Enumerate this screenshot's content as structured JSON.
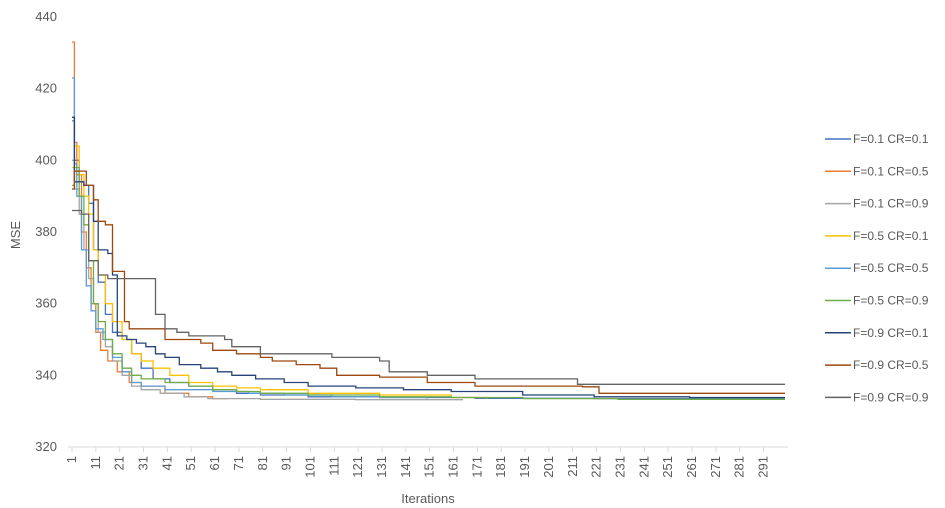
{
  "chart_data": {
    "type": "line",
    "title": "",
    "xlabel": "Iterations",
    "ylabel": "MSE",
    "xlim": [
      1,
      300
    ],
    "ylim": [
      320,
      440
    ],
    "y_ticks": [
      "320",
      "340",
      "360",
      "380",
      "400",
      "420",
      "440"
    ],
    "x_ticks": [
      "1",
      "11",
      "21",
      "31",
      "41",
      "51",
      "61",
      "71",
      "81",
      "91",
      "101",
      "111",
      "121",
      "131",
      "141",
      "151",
      "161",
      "171",
      "181",
      "191",
      "201",
      "211",
      "221",
      "231",
      "241",
      "251",
      "261",
      "271",
      "281",
      "291"
    ],
    "grid": false,
    "legend_position": "right",
    "series": [
      {
        "name": "F=0.1 CR=0.1",
        "color": "#4472C4",
        "points": [
          [
            1,
            411
          ],
          [
            2,
            400
          ],
          [
            4,
            394
          ],
          [
            6,
            393
          ],
          [
            8,
            388
          ],
          [
            10,
            375
          ],
          [
            12,
            366
          ],
          [
            15,
            357
          ],
          [
            18,
            352
          ],
          [
            22,
            350
          ],
          [
            26,
            346
          ],
          [
            30,
            342
          ],
          [
            35,
            339
          ],
          [
            42,
            338
          ],
          [
            50,
            337
          ],
          [
            60,
            336
          ],
          [
            70,
            335
          ],
          [
            80,
            334.5
          ],
          [
            100,
            334
          ],
          [
            130,
            333.8
          ],
          [
            170,
            333.6
          ],
          [
            220,
            333.5
          ],
          [
            300,
            333.5
          ]
        ]
      },
      {
        "name": "F=0.1 CR=0.5",
        "color": "#ED7D31",
        "points": [
          [
            1,
            433
          ],
          [
            2,
            405
          ],
          [
            3,
            396
          ],
          [
            5,
            380
          ],
          [
            7,
            370
          ],
          [
            9,
            360
          ],
          [
            11,
            352
          ],
          [
            13,
            347
          ],
          [
            16,
            344
          ],
          [
            20,
            341
          ],
          [
            25,
            338
          ],
          [
            30,
            337
          ],
          [
            40,
            335
          ],
          [
            50,
            334
          ],
          [
            60,
            333.5
          ],
          [
            66,
            333.3
          ]
        ]
      },
      {
        "name": "F=0.1 CR=0.9",
        "color": "#A5A5A5",
        "points": [
          [
            1,
            400
          ],
          [
            2,
            392
          ],
          [
            4,
            385
          ],
          [
            6,
            375
          ],
          [
            8,
            367
          ],
          [
            10,
            360
          ],
          [
            12,
            352
          ],
          [
            15,
            348
          ],
          [
            18,
            344
          ],
          [
            22,
            340
          ],
          [
            26,
            337
          ],
          [
            30,
            336
          ],
          [
            38,
            335
          ],
          [
            48,
            334
          ],
          [
            58,
            333.5
          ],
          [
            80,
            333.3
          ],
          [
            120,
            333.2
          ],
          [
            165,
            333.2
          ]
        ]
      },
      {
        "name": "F=0.5 CR=0.1",
        "color": "#FFC000",
        "points": [
          [
            1,
            398
          ],
          [
            2,
            404
          ],
          [
            4,
            396
          ],
          [
            6,
            390
          ],
          [
            8,
            385
          ],
          [
            10,
            375
          ],
          [
            12,
            368
          ],
          [
            15,
            360
          ],
          [
            18,
            355
          ],
          [
            22,
            350
          ],
          [
            26,
            346
          ],
          [
            30,
            344
          ],
          [
            35,
            342
          ],
          [
            42,
            340
          ],
          [
            50,
            338
          ],
          [
            60,
            337
          ],
          [
            70,
            336.5
          ],
          [
            80,
            336
          ],
          [
            100,
            335
          ],
          [
            130,
            334.5
          ],
          [
            160,
            333.8
          ],
          [
            175,
            333.5
          ]
        ]
      },
      {
        "name": "F=0.5 CR=0.5",
        "color": "#5B9BD5",
        "points": [
          [
            1,
            423
          ],
          [
            2,
            399
          ],
          [
            3,
            390
          ],
          [
            5,
            375
          ],
          [
            7,
            365
          ],
          [
            9,
            358
          ],
          [
            11,
            353
          ],
          [
            14,
            350
          ],
          [
            18,
            345
          ],
          [
            22,
            341
          ],
          [
            26,
            338
          ],
          [
            30,
            337
          ],
          [
            40,
            336
          ],
          [
            50,
            336
          ],
          [
            60,
            335.5
          ],
          [
            75,
            335
          ],
          [
            90,
            334.5
          ],
          [
            110,
            334
          ],
          [
            130,
            333.8
          ],
          [
            150,
            333.5
          ]
        ]
      },
      {
        "name": "F=0.5 CR=0.9",
        "color": "#70AD47",
        "points": [
          [
            1,
            393
          ],
          [
            2,
            398
          ],
          [
            4,
            390
          ],
          [
            6,
            382
          ],
          [
            8,
            372
          ],
          [
            10,
            360
          ],
          [
            12,
            355
          ],
          [
            15,
            350
          ],
          [
            18,
            346
          ],
          [
            22,
            342
          ],
          [
            26,
            340
          ],
          [
            30,
            339
          ],
          [
            40,
            338
          ],
          [
            50,
            337
          ],
          [
            60,
            336
          ],
          [
            70,
            335.5
          ],
          [
            80,
            335
          ],
          [
            100,
            334.5
          ],
          [
            130,
            334
          ],
          [
            160,
            333.8
          ],
          [
            190,
            333.5
          ],
          [
            230,
            333.3
          ],
          [
            300,
            333.3
          ]
        ]
      },
      {
        "name": "F=0.9 CR=0.1",
        "color": "#264478",
        "points": [
          [
            1,
            412
          ],
          [
            2,
            394
          ],
          [
            6,
            393
          ],
          [
            10,
            383
          ],
          [
            12,
            375
          ],
          [
            16,
            374
          ],
          [
            18,
            368
          ],
          [
            20,
            351
          ],
          [
            24,
            350
          ],
          [
            28,
            349
          ],
          [
            32,
            348
          ],
          [
            36,
            346
          ],
          [
            40,
            345
          ],
          [
            46,
            343
          ],
          [
            55,
            342
          ],
          [
            62,
            341
          ],
          [
            68,
            340
          ],
          [
            78,
            339
          ],
          [
            90,
            338
          ],
          [
            100,
            337
          ],
          [
            120,
            336.5
          ],
          [
            140,
            336
          ],
          [
            160,
            335.5
          ],
          [
            190,
            334.5
          ],
          [
            220,
            334
          ],
          [
            260,
            333.8
          ],
          [
            300,
            333.8
          ]
        ]
      },
      {
        "name": "F=0.9 CR=0.5",
        "color": "#9E480E",
        "points": [
          [
            1,
            392
          ],
          [
            2,
            397
          ],
          [
            4,
            397
          ],
          [
            7,
            393
          ],
          [
            10,
            389
          ],
          [
            12,
            383
          ],
          [
            15,
            382
          ],
          [
            18,
            369
          ],
          [
            21,
            369
          ],
          [
            23,
            355
          ],
          [
            25,
            353
          ],
          [
            30,
            353
          ],
          [
            38,
            353
          ],
          [
            40,
            350
          ],
          [
            50,
            350
          ],
          [
            55,
            349
          ],
          [
            60,
            347
          ],
          [
            70,
            346
          ],
          [
            80,
            345
          ],
          [
            85,
            344
          ],
          [
            95,
            343
          ],
          [
            105,
            342
          ],
          [
            112,
            340
          ],
          [
            130,
            339.5
          ],
          [
            150,
            338
          ],
          [
            170,
            337
          ],
          [
            200,
            337
          ],
          [
            215,
            336.8
          ],
          [
            222,
            335
          ],
          [
            260,
            335
          ],
          [
            300,
            335
          ]
        ]
      },
      {
        "name": "F=0.9 CR=0.9",
        "color": "#636363",
        "points": [
          [
            1,
            386
          ],
          [
            3,
            386
          ],
          [
            5,
            385
          ],
          [
            8,
            372
          ],
          [
            12,
            368
          ],
          [
            16,
            367
          ],
          [
            25,
            367
          ],
          [
            32,
            367
          ],
          [
            36,
            357
          ],
          [
            40,
            353
          ],
          [
            45,
            352
          ],
          [
            50,
            351
          ],
          [
            65,
            350
          ],
          [
            68,
            348
          ],
          [
            80,
            346
          ],
          [
            100,
            346
          ],
          [
            110,
            345
          ],
          [
            130,
            344
          ],
          [
            134,
            341
          ],
          [
            150,
            340
          ],
          [
            170,
            339
          ],
          [
            185,
            339
          ],
          [
            210,
            339
          ],
          [
            213,
            337.5
          ],
          [
            260,
            337.5
          ],
          [
            300,
            337.5
          ]
        ]
      }
    ]
  }
}
